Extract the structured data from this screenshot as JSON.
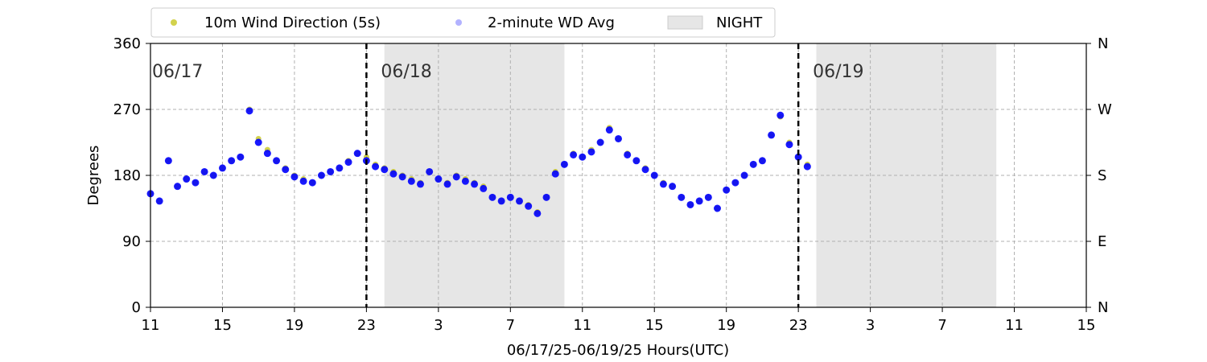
{
  "chart_data": {
    "type": "scatter",
    "xlabel": "06/17/25-06/19/25  Hours(UTC)",
    "ylabel": "Degrees",
    "ylim": [
      0,
      360
    ],
    "xlim_hours": [
      0,
      52
    ],
    "x_tick_labels": [
      "11",
      "15",
      "19",
      "23",
      "3",
      "7",
      "11",
      "15",
      "19",
      "23",
      "3",
      "7",
      "11",
      "15"
    ],
    "y_ticks": [
      0,
      90,
      180,
      270,
      360
    ],
    "y_right_labels": [
      "N",
      "E",
      "S",
      "W",
      "N"
    ],
    "grid": true,
    "legend_position": "top",
    "day_dividers": [
      {
        "label": "06/17",
        "x": 0
      },
      {
        "label": "06/18",
        "x": 12
      },
      {
        "label": "06/19",
        "x": 36
      }
    ],
    "night_periods": [
      [
        13,
        23
      ],
      [
        37,
        47
      ]
    ],
    "series": [
      {
        "name": "10m Wind Direction (5s)",
        "color": "#bfbf00",
        "x": [
          0,
          0.5,
          1,
          1.5,
          2,
          2.5,
          3,
          3.5,
          4,
          4.5,
          5,
          5.5,
          6,
          6.5,
          7,
          7.5,
          8,
          8.5,
          9,
          9.5,
          10,
          10.5,
          11,
          11.5,
          12,
          12.5,
          13,
          13.5,
          14,
          14.5,
          15,
          15.5,
          16,
          16.5,
          17,
          17.5,
          18,
          18.5,
          19,
          19.5,
          20,
          20.5,
          21,
          21.5,
          22,
          22.5,
          23,
          23.5,
          24,
          24.5,
          25,
          25.5,
          26,
          26.5,
          27,
          27.5,
          28,
          28.5,
          29,
          29.5,
          30,
          30.5,
          31,
          31.5,
          32,
          32.5,
          33,
          33.5,
          34,
          34.5,
          35,
          35.5,
          36,
          36.5
        ],
        "y": [
          155,
          145,
          200,
          165,
          175,
          170,
          185,
          180,
          190,
          200,
          205,
          270,
          230,
          215,
          200,
          190,
          180,
          175,
          170,
          180,
          185,
          190,
          200,
          210,
          205,
          195,
          190,
          185,
          180,
          175,
          170,
          185,
          175,
          170,
          180,
          175,
          170,
          165,
          150,
          145,
          150,
          145,
          140,
          130,
          150,
          185,
          195,
          210,
          205,
          215,
          225,
          245,
          230,
          210,
          200,
          190,
          180,
          170,
          165,
          150,
          140,
          145,
          150,
          135,
          160,
          170,
          180,
          195,
          200,
          235,
          260,
          225,
          205,
          195
        ]
      },
      {
        "name": "2-minute WD Avg",
        "color": "#0000ff",
        "x": [
          0,
          0.5,
          1,
          1.5,
          2,
          2.5,
          3,
          3.5,
          4,
          4.5,
          5,
          5.5,
          6,
          6.5,
          7,
          7.5,
          8,
          8.5,
          9,
          9.5,
          10,
          10.5,
          11,
          11.5,
          12,
          12.5,
          13,
          13.5,
          14,
          14.5,
          15,
          15.5,
          16,
          16.5,
          17,
          17.5,
          18,
          18.5,
          19,
          19.5,
          20,
          20.5,
          21,
          21.5,
          22,
          22.5,
          23,
          23.5,
          24,
          24.5,
          25,
          25.5,
          26,
          26.5,
          27,
          27.5,
          28,
          28.5,
          29,
          29.5,
          30,
          30.5,
          31,
          31.5,
          32,
          32.5,
          33,
          33.5,
          34,
          34.5,
          35,
          35.5,
          36,
          36.5
        ],
        "y": [
          155,
          145,
          200,
          165,
          175,
          170,
          185,
          180,
          190,
          200,
          205,
          268,
          225,
          210,
          200,
          188,
          178,
          172,
          170,
          180,
          185,
          190,
          198,
          210,
          200,
          192,
          188,
          182,
          178,
          172,
          168,
          185,
          175,
          168,
          178,
          172,
          168,
          162,
          150,
          145,
          150,
          145,
          138,
          128,
          150,
          182,
          195,
          208,
          205,
          212,
          225,
          242,
          230,
          208,
          200,
          188,
          180,
          168,
          165,
          150,
          140,
          145,
          150,
          135,
          160,
          170,
          180,
          195,
          200,
          235,
          262,
          222,
          205,
          192
        ]
      }
    ],
    "legend_night_label": "NIGHT",
    "colors": {
      "night": "#e6e6e6",
      "grid": "#b0b0b0",
      "divider": "#000000"
    }
  }
}
